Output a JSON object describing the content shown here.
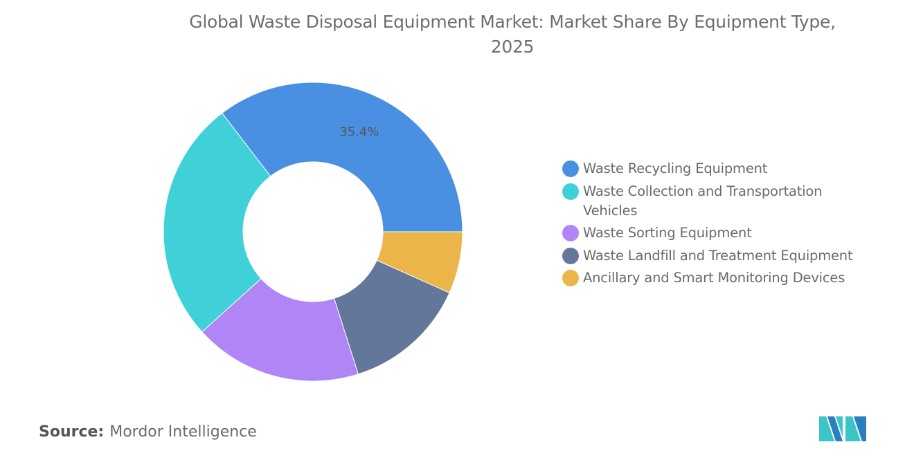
{
  "chart_data": {
    "type": "pie",
    "variant": "donut",
    "title": "Global Waste Disposal Equipment Market: Market Share By Equipment Type, 2025",
    "title_lines": [
      "Global Waste Disposal Equipment Market: Market Share By Equipment Type,",
      "2025"
    ],
    "categories": [
      "Waste Recycling Equipment",
      "Waste Collection and Transportation Vehicles",
      "Waste Sorting Equipment",
      "Waste Landfill and Treatment Equipment",
      "Ancillary and Smart Monitoring Devices"
    ],
    "values": [
      35.4,
      26.3,
      18.2,
      13.4,
      6.7
    ],
    "data_labels": [
      "35.4%",
      "",
      "",
      "",
      ""
    ],
    "colors": [
      "#4a90e2",
      "#3fd0d8",
      "#b085f5",
      "#62779a",
      "#ebb54a"
    ],
    "legend_position": "right"
  },
  "source": {
    "label": "Source:",
    "value": "Mordor Intelligence"
  },
  "logo": {
    "name": "mordor-intelligence-logo",
    "colors": [
      "#2a7fc1",
      "#3cc4c9"
    ]
  }
}
